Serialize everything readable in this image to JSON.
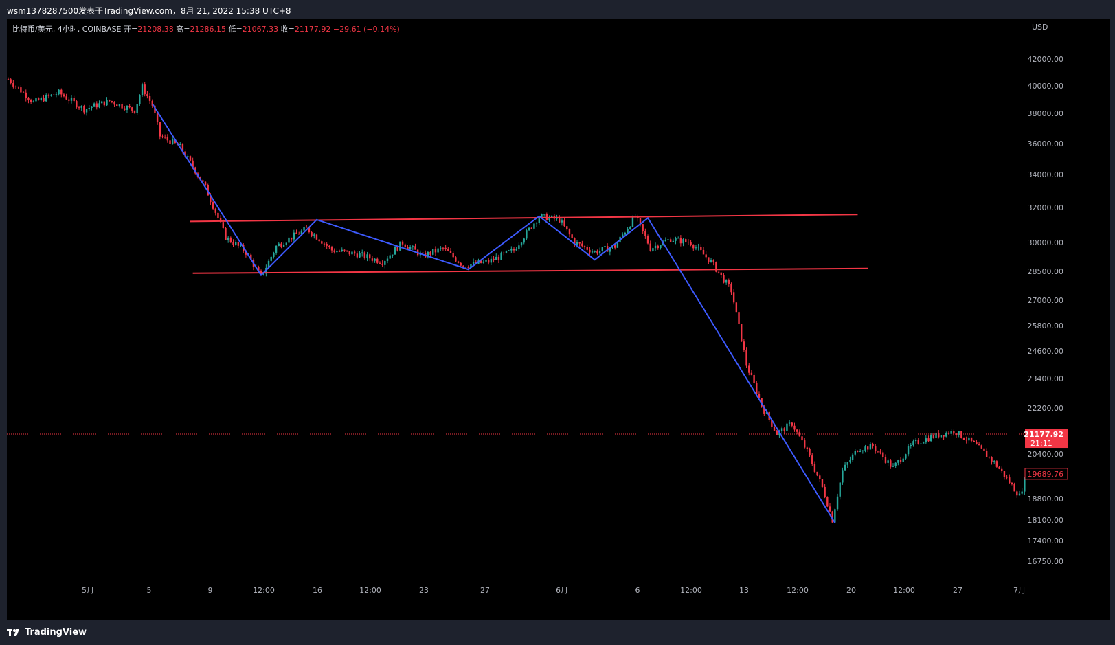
{
  "header": {
    "title": "wsm1378287500发表于TradingView.com，8月 21, 2022 15:38 UTC+8"
  },
  "legend": {
    "symbol": "比特币/美元, 4小时, COINBASE",
    "open_label": "开=",
    "open": "21208.38",
    "high_label": "高=",
    "high": "21286.15",
    "low_label": "低=",
    "low": "21067.33",
    "close_label": "收=",
    "close": "21177.92",
    "change": "−29.61 (−0.14%)"
  },
  "footer": {
    "brand": "TradingView"
  },
  "colors": {
    "up": "#26a69a",
    "down": "#f23645",
    "pattern_line": "#3d5afe",
    "channel_line": "#f23645",
    "background": "#000000"
  },
  "chart_data": {
    "type": "candlestick",
    "currency": "USD",
    "y_ticks": [
      "42000.00",
      "40000.00",
      "38000.00",
      "36000.00",
      "34000.00",
      "32000.00",
      "30000.00",
      "28500.00",
      "27000.00",
      "25800.00",
      "24600.00",
      "23400.00",
      "22200.00",
      "20400.00",
      "18800.00",
      "18100.00",
      "17400.00",
      "16750.00"
    ],
    "x_ticks": [
      "5月",
      "5",
      "9",
      "12:00",
      "16",
      "12:00",
      "23",
      "27",
      "6月",
      "6",
      "12:00",
      "13",
      "12:00",
      "20",
      "12:00",
      "27",
      "7月"
    ],
    "last_price": "21177.92",
    "countdown": "21:11",
    "price_marker": "19689.76",
    "path_points": [
      {
        "t": 0,
        "price": 40500
      },
      {
        "t": 10,
        "price": 38800
      },
      {
        "t": 20,
        "price": 39500
      },
      {
        "t": 30,
        "price": 38300
      },
      {
        "t": 40,
        "price": 38900
      },
      {
        "t": 50,
        "price": 38200
      },
      {
        "t": 53,
        "price": 39900
      },
      {
        "t": 57,
        "price": 38600
      },
      {
        "t": 60,
        "price": 36500
      },
      {
        "t": 68,
        "price": 35800
      },
      {
        "t": 78,
        "price": 33200
      },
      {
        "t": 86,
        "price": 30300
      },
      {
        "t": 94,
        "price": 29500
      },
      {
        "t": 100,
        "price": 28200
      },
      {
        "t": 106,
        "price": 29800
      },
      {
        "t": 118,
        "price": 30800
      },
      {
        "t": 128,
        "price": 29600
      },
      {
        "t": 138,
        "price": 29400
      },
      {
        "t": 148,
        "price": 29000
      },
      {
        "t": 156,
        "price": 30000
      },
      {
        "t": 164,
        "price": 29300
      },
      {
        "t": 172,
        "price": 29700
      },
      {
        "t": 180,
        "price": 28800
      },
      {
        "t": 190,
        "price": 29000
      },
      {
        "t": 200,
        "price": 29600
      },
      {
        "t": 210,
        "price": 31500
      },
      {
        "t": 218,
        "price": 31300
      },
      {
        "t": 224,
        "price": 30000
      },
      {
        "t": 232,
        "price": 29500
      },
      {
        "t": 240,
        "price": 29800
      },
      {
        "t": 248,
        "price": 31500
      },
      {
        "t": 254,
        "price": 29700
      },
      {
        "t": 262,
        "price": 30200
      },
      {
        "t": 270,
        "price": 30000
      },
      {
        "t": 278,
        "price": 29000
      },
      {
        "t": 286,
        "price": 27500
      },
      {
        "t": 292,
        "price": 24000
      },
      {
        "t": 298,
        "price": 22300
      },
      {
        "t": 304,
        "price": 21200
      },
      {
        "t": 310,
        "price": 21600
      },
      {
        "t": 316,
        "price": 20500
      },
      {
        "t": 322,
        "price": 19200
      },
      {
        "t": 326,
        "price": 18100
      },
      {
        "t": 330,
        "price": 19800
      },
      {
        "t": 336,
        "price": 20600
      },
      {
        "t": 342,
        "price": 20700
      },
      {
        "t": 350,
        "price": 19900
      },
      {
        "t": 358,
        "price": 20800
      },
      {
        "t": 366,
        "price": 21100
      },
      {
        "t": 374,
        "price": 21300
      },
      {
        "t": 382,
        "price": 20800
      },
      {
        "t": 390,
        "price": 20100
      },
      {
        "t": 396,
        "price": 19400
      },
      {
        "t": 400,
        "price": 18900
      },
      {
        "t": 403,
        "price": 19700
      }
    ],
    "zigzag": [
      {
        "t": 57,
        "price": 38700
      },
      {
        "t": 100,
        "price": 28300
      },
      {
        "t": 122,
        "price": 31300
      },
      {
        "t": 182,
        "price": 28600
      },
      {
        "t": 210,
        "price": 31500
      },
      {
        "t": 232,
        "price": 29100
      },
      {
        "t": 253,
        "price": 31400
      },
      {
        "t": 327,
        "price": 18000
      }
    ],
    "channel_upper": {
      "t0": 72,
      "p0": 31200,
      "t1": 336,
      "p1": 31600
    },
    "channel_lower": {
      "t0": 73,
      "p0": 28400,
      "t1": 340,
      "p1": 28650
    }
  }
}
